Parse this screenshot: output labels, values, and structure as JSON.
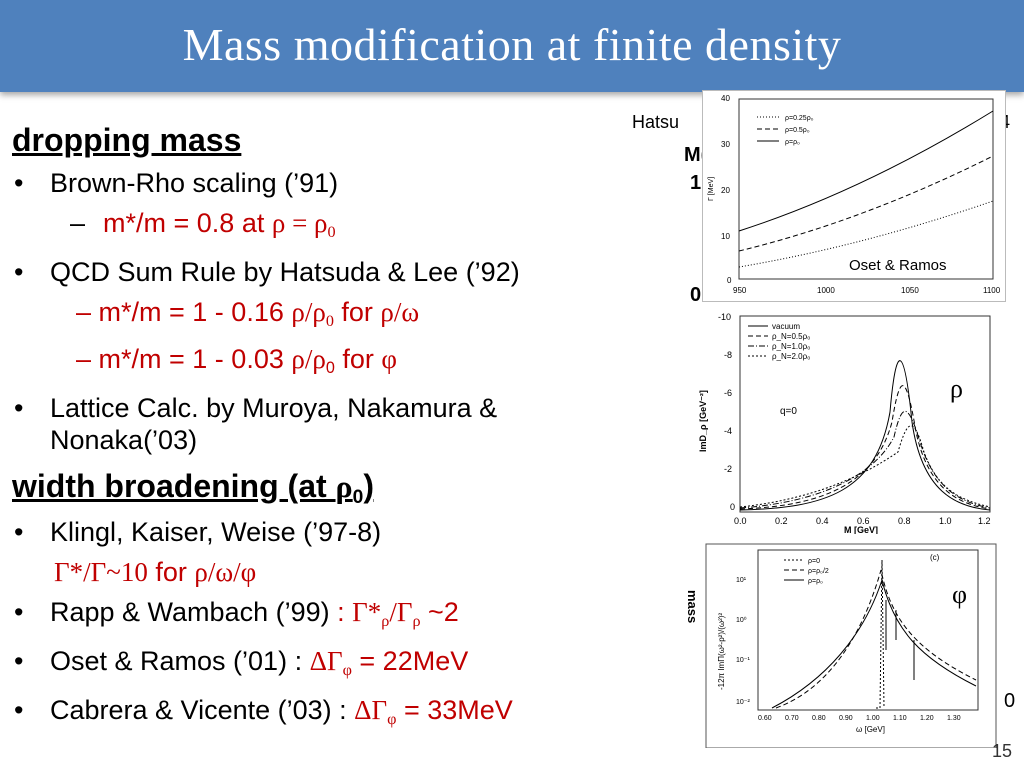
{
  "title": "Mass modification at finite density",
  "section1": {
    "heading": "dropping mass",
    "br_scaling": "Brown-Rho scaling (’91)",
    "br_sub_prefix": "m*/m = 0.8 at ",
    "br_sub_sym": "ρ = ρ",
    "br_sub_subscript": "0",
    "qcd": "QCD Sum Rule by Hatsuda & Lee (’92)",
    "qcd_sub1_prefix": "m*/m = 1 - 0.16 ",
    "qcd_sub1_sym": "ρ/ρ",
    "qcd_sub1_subscript": "0",
    "qcd_sub1_for": " for ",
    "qcd_sub1_target": "ρ/ω",
    "qcd_sub2_prefix": "m*/m = 1 - 0.03 ",
    "qcd_sub2_sym": "ρ/ρ",
    "qcd_sub2_subscript": "0",
    "qcd_sub2_for": " for ",
    "qcd_sub2_target": "φ",
    "lattice": "Lattice Calc. by Muroya, Nakamura & Nonaka(’03)"
  },
  "section2": {
    "heading_prefix": "width broadening (at ",
    "heading_sym": "ρ",
    "heading_subscript": "0",
    "heading_suffix": ")",
    "klingl": "Klingl, Kaiser, Weise (’97-8)",
    "klingl_sub_sym": "Γ*/Γ~10",
    "klingl_sub_for": " for ",
    "klingl_sub_target": "ρ/ω/φ",
    "rapp_prefix": "Rapp & Wambach (’99) ",
    "rapp_colon": ": ",
    "rapp_sym1": "Γ*",
    "rapp_sub1": "ρ",
    "rapp_sym2": "/Γ",
    "rapp_sub2": "ρ",
    "rapp_value": " ~2",
    "oset_prefix": "Oset & Ramos (’01) : ",
    "oset_sym": "ΔΓ",
    "oset_sub": "φ",
    "oset_value": " = 22MeV",
    "cabrera_prefix": "Cabrera & Vicente (’03) : ",
    "cabrera_sym": "ΔΓ",
    "cabrera_sub": "φ",
    "cabrera_value": " = 33MeV"
  },
  "background_text": {
    "hatsu": "Hatsu",
    "four": "4",
    "m": "M(",
    "one": "1",
    "zero": "0",
    "zero_right": "0"
  },
  "figures": {
    "fig1": {
      "label": "Oset & Ramos",
      "y_axis_label": "Γ [MeV]",
      "x_ticks": [
        "950",
        "1000",
        "1050",
        "1100"
      ],
      "y_ticks": [
        "0",
        "10",
        "20",
        "30",
        "40"
      ],
      "legend": [
        "ρ=0.25ρ₀",
        "ρ=0.5ρ₀",
        "ρ=ρ₀"
      ]
    },
    "fig2": {
      "symbol": "ρ",
      "y_axis_label": "ImD_ρ [GeV⁻²]",
      "x_axis_label": "M [GeV]",
      "annotation": "q=0",
      "x_ticks": [
        "0.0",
        "0.2",
        "0.4",
        "0.6",
        "0.8",
        "1.0",
        "1.2"
      ],
      "y_ticks": [
        "-10",
        "-8",
        "-6",
        "-4",
        "-2",
        "0"
      ],
      "legend": [
        "vacuum",
        "ρ_N=0.5ρ₀",
        "ρ_N=1.0ρ₀",
        "ρ_N=2.0ρ₀"
      ]
    },
    "fig3": {
      "symbol": "φ",
      "side_label": "mass",
      "y_axis_label": "-12π ImΠ(ω²-p²)/(ω²)²",
      "x_axis_label": "ω [GeV]",
      "panel_tag": "(c)",
      "x_ticks": [
        "0.60",
        "0.70",
        "0.80",
        "0.90",
        "1.00",
        "1.10",
        "1.20",
        "1.30"
      ],
      "y_ticks": [
        "10¹",
        "10⁰",
        "10⁻¹",
        "10⁻²"
      ],
      "legend": [
        "ρ=0",
        "ρ=ρ₀/2",
        "ρ=ρ₀"
      ]
    }
  },
  "page_number": "15"
}
